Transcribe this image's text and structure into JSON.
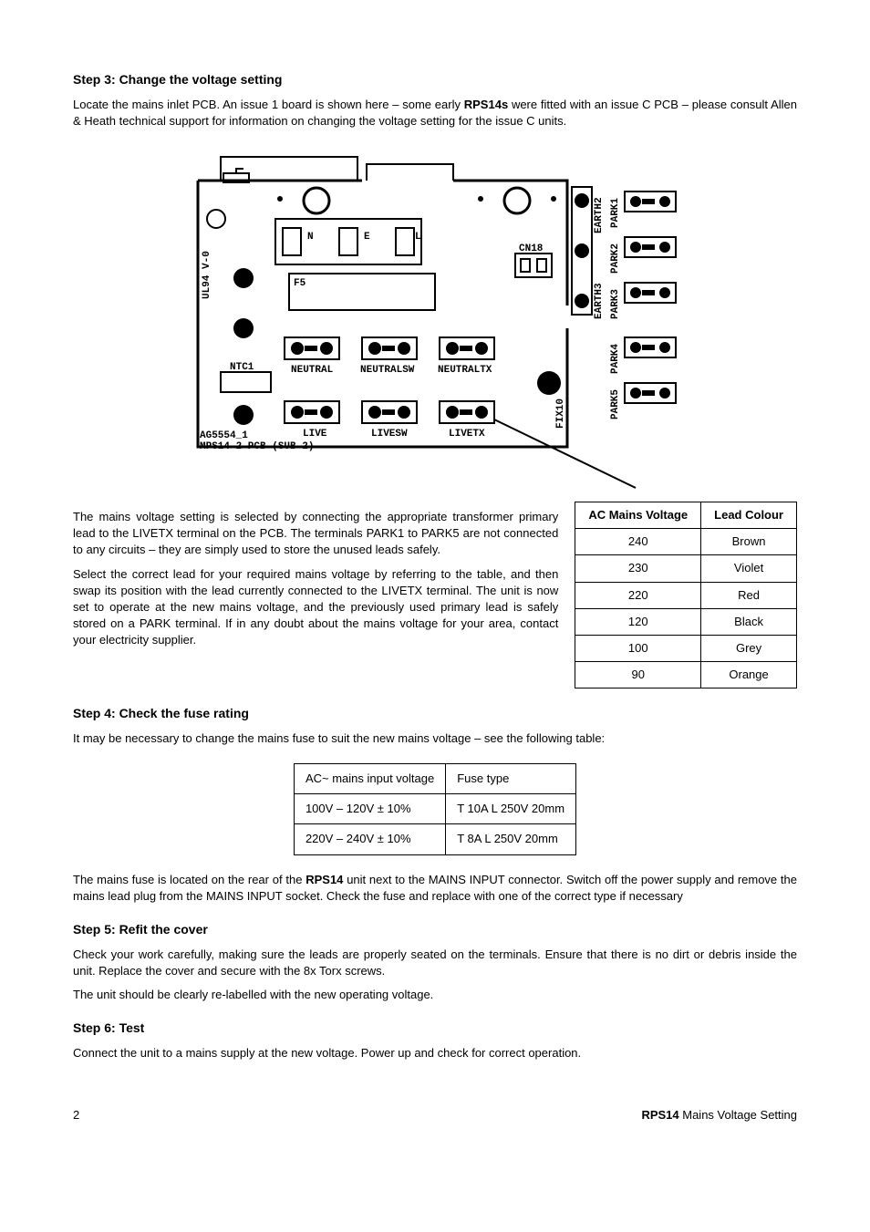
{
  "step3": {
    "title": "Step 3:  Change the voltage setting",
    "para1_a": "Locate the mains inlet PCB.  An issue 1 board is shown here – some early ",
    "para1_bold": "RPS14s",
    "para1_b": " were fitted with an issue C PCB – please consult Allen & Heath technical support for information on changing the voltage setting for the issue C units.",
    "para2": "The mains voltage setting is selected by connecting the appropriate transformer primary lead to the LIVETX terminal on the PCB.  The terminals PARK1 to PARK5 are not connected to any circuits – they are simply used to store the unused leads safely.",
    "para3": "Select the correct lead for your required mains voltage by referring to the table, and then swap its position with the lead currently connected to the LIVETX terminal.  The unit is now set to operate at the new mains voltage, and the previously used primary lead is safely stored on a PARK terminal.  If in any doubt about the mains voltage for your area, contact your electricity supplier."
  },
  "voltage_table": {
    "headers": [
      "AC Mains Voltage",
      "Lead Colour"
    ],
    "rows": [
      [
        "240",
        "Brown"
      ],
      [
        "230",
        "Violet"
      ],
      [
        "220",
        "Red"
      ],
      [
        "120",
        "Black"
      ],
      [
        "100",
        "Grey"
      ],
      [
        "90",
        "Orange"
      ]
    ]
  },
  "step4": {
    "title": "Step 4:  Check the fuse rating",
    "para1": "It may be necessary to change the mains fuse to suit the new mains voltage – see the following table:",
    "para2_a": "The mains fuse is located on the rear of the ",
    "para2_bold": "RPS14",
    "para2_b": " unit next to the MAINS INPUT connector.  Switch off the power supply and remove the mains lead plug from the MAINS INPUT socket.  Check the fuse and replace with one of the correct type if necessary"
  },
  "fuse_table": {
    "headers": [
      "AC~ mains input voltage",
      "Fuse type"
    ],
    "rows": [
      [
        "100V – 120V ± 10%",
        "T 10A L 250V 20mm"
      ],
      [
        "220V – 240V ± 10%",
        "T 8A L 250V 20mm"
      ]
    ]
  },
  "step5": {
    "title": "Step 5:  Refit the cover",
    "para1": "Check your work carefully, making sure the leads are properly seated on the terminals.  Ensure that there is no dirt or debris inside the unit.  Replace the cover and secure with the 8x Torx screws.",
    "para2": "The unit should be clearly re-labelled with the new operating voltage."
  },
  "step6": {
    "title": "Step 6:  Test",
    "para1": "Connect the unit to a mains supply at the new voltage.  Power up and check for correct operation."
  },
  "footer": {
    "page": "2",
    "doc_bold": "RPS14",
    "doc_rest": " Mains Voltage Setting"
  },
  "diagram": {
    "labels": {
      "ul94": "UL94 V-0",
      "f5": "F5",
      "n": "N",
      "e": "E",
      "l": "L",
      "cn18": "CN18",
      "ntc1": "NTC1",
      "neutral": "NEUTRAL",
      "neutralsw": "NEUTRALSW",
      "neutraltx": "NEUTRALTX",
      "live": "LIVE",
      "livesw": "LIVESW",
      "livetx": "LIVETX",
      "ag": "AG5554_1",
      "mps": "MPS14-2 PCB (SUB 2)",
      "earth2": "EARTH2",
      "earth3": "EARTH3",
      "park1": "PARK1",
      "park2": "PARK2",
      "park3": "PARK3",
      "park4": "PARK4",
      "park5": "PARK5",
      "fix10": "FIX10"
    }
  }
}
